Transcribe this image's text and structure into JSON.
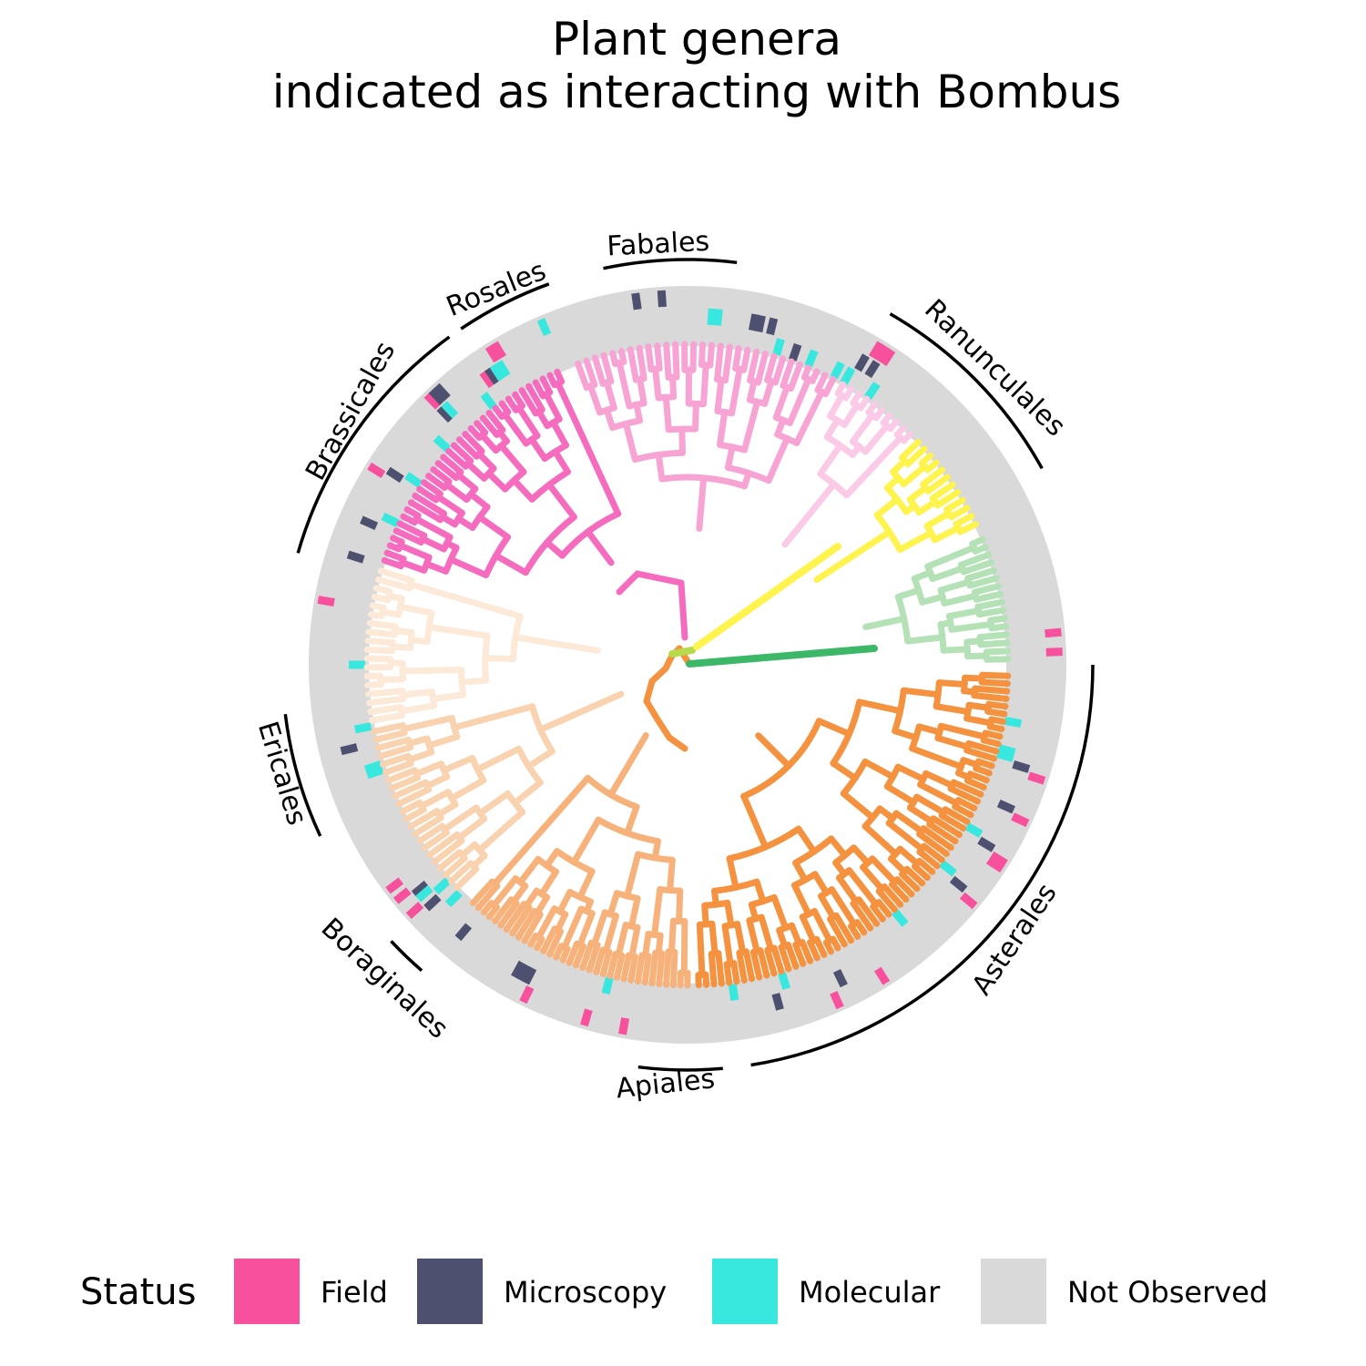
{
  "title": {
    "line1": "Plant genera",
    "line2": "indicated as interacting with Bombus"
  },
  "clades": [
    {
      "label": "Rosales"
    },
    {
      "label": "Fabales"
    },
    {
      "label": "Ranunculales"
    },
    {
      "label": "Brassicales"
    },
    {
      "label": "Ericales"
    },
    {
      "label": "Boraginales"
    },
    {
      "label": "Apiales"
    },
    {
      "label": "Asterales"
    }
  ],
  "legend": {
    "title": "Status",
    "items": [
      {
        "label": "Field",
        "color": "#F7509C"
      },
      {
        "label": "Microscopy",
        "color": "#4E506F"
      },
      {
        "label": "Molecular",
        "color": "#38E8DE"
      },
      {
        "label": "Not Observed",
        "color": "#D9D9D9"
      }
    ]
  },
  "colors": {
    "asterales": "#F4923F",
    "apiales_boraginales": "#F6B27A",
    "ericales": "#F9D2B0",
    "brassicales_lower": "#FDE9D8",
    "malvales": "#F56CBE",
    "rosales": "#F7A4D5",
    "fabales": "#FBCAE6",
    "ranunculales": "#FFF34D",
    "monocots": "#B4E1B5",
    "monocot_stem": "#3DB868",
    "outgroup": "#B7D94C"
  }
}
